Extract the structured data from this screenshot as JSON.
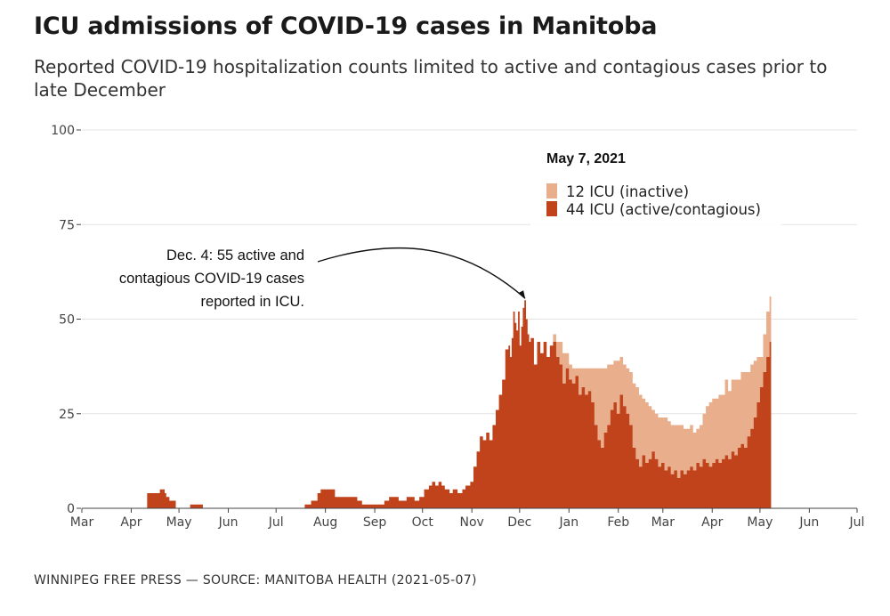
{
  "title": "ICU admissions of COVID-19 cases in Manitoba",
  "subtitle": "Reported COVID-19 hospitalization counts limited to active and contagious cases prior to late December",
  "footer": "WINNIPEG FREE PRESS — SOURCE: MANITOBA HEALTH (2021-05-07)",
  "colors": {
    "active": "#c0431b",
    "inactive": "#e9ae8c",
    "grid": "#e4e4e4",
    "axis": "#444444"
  },
  "chart_data": {
    "type": "area",
    "stacked": true,
    "x_start": "2020-03-01",
    "x_end": "2021-07-01",
    "ylim": [
      0,
      100
    ],
    "yticks": [
      0,
      25,
      50,
      75,
      100
    ],
    "xtick_labels": [
      "Mar",
      "Apr",
      "May",
      "Jun",
      "Jul",
      "Aug",
      "Sep",
      "Oct",
      "Nov",
      "Dec",
      "Jan",
      "Feb",
      "Mar",
      "Apr",
      "May",
      "Jun",
      "Jul"
    ],
    "xtick_dates": [
      "2020-03-01",
      "2020-04-01",
      "2020-05-01",
      "2020-06-01",
      "2020-07-01",
      "2020-08-01",
      "2020-09-01",
      "2020-10-01",
      "2020-11-01",
      "2020-12-01",
      "2021-01-01",
      "2021-02-01",
      "2021-03-01",
      "2021-04-01",
      "2021-05-01",
      "2021-06-01",
      "2021-07-01"
    ],
    "grid": true,
    "legend": {
      "position": "top-right",
      "title": "May 7, 2021",
      "items": [
        {
          "label": "12 ICU (inactive)",
          "color": "#e9ae8c"
        },
        {
          "label": "44 ICU (active/contagious)",
          "color": "#c0431b"
        }
      ]
    },
    "annotation": {
      "lines": [
        "Dec. 4: 55 active and",
        "contagious COVID-19 cases",
        "reported in ICU."
      ],
      "date": "2020-12-04",
      "value": 55
    },
    "series": [
      {
        "name": "ICU (active/contagious)",
        "color": "#c0431b",
        "points": [
          [
            "2020-03-01",
            0
          ],
          [
            "2020-04-10",
            0
          ],
          [
            "2020-04-11",
            4
          ],
          [
            "2020-04-18",
            4
          ],
          [
            "2020-04-19",
            5
          ],
          [
            "2020-04-21",
            5
          ],
          [
            "2020-04-22",
            4
          ],
          [
            "2020-04-23",
            3
          ],
          [
            "2020-04-25",
            2
          ],
          [
            "2020-04-28",
            2
          ],
          [
            "2020-04-29",
            0
          ],
          [
            "2020-05-07",
            0
          ],
          [
            "2020-05-08",
            1
          ],
          [
            "2020-05-15",
            1
          ],
          [
            "2020-05-16",
            0
          ],
          [
            "2020-07-18",
            0
          ],
          [
            "2020-07-19",
            1
          ],
          [
            "2020-07-22",
            1
          ],
          [
            "2020-07-23",
            2
          ],
          [
            "2020-07-26",
            2
          ],
          [
            "2020-07-27",
            4
          ],
          [
            "2020-07-29",
            5
          ],
          [
            "2020-08-06",
            5
          ],
          [
            "2020-08-07",
            3
          ],
          [
            "2020-08-20",
            3
          ],
          [
            "2020-08-21",
            2
          ],
          [
            "2020-08-24",
            1
          ],
          [
            "2020-09-06",
            1
          ],
          [
            "2020-09-07",
            2
          ],
          [
            "2020-09-10",
            3
          ],
          [
            "2020-09-14",
            3
          ],
          [
            "2020-09-16",
            2
          ],
          [
            "2020-09-20",
            2
          ],
          [
            "2020-09-21",
            3
          ],
          [
            "2020-09-25",
            3
          ],
          [
            "2020-09-26",
            2
          ],
          [
            "2020-09-29",
            3
          ],
          [
            "2020-10-01",
            3
          ],
          [
            "2020-10-02",
            5
          ],
          [
            "2020-10-05",
            6
          ],
          [
            "2020-10-07",
            7
          ],
          [
            "2020-10-09",
            6
          ],
          [
            "2020-10-11",
            7
          ],
          [
            "2020-10-13",
            6
          ],
          [
            "2020-10-15",
            5
          ],
          [
            "2020-10-18",
            4
          ],
          [
            "2020-10-20",
            5
          ],
          [
            "2020-10-23",
            4
          ],
          [
            "2020-10-26",
            5
          ],
          [
            "2020-10-28",
            6
          ],
          [
            "2020-10-31",
            7
          ],
          [
            "2020-11-02",
            11
          ],
          [
            "2020-11-04",
            15
          ],
          [
            "2020-11-06",
            19
          ],
          [
            "2020-11-08",
            18
          ],
          [
            "2020-11-10",
            20
          ],
          [
            "2020-11-12",
            18
          ],
          [
            "2020-11-14",
            22
          ],
          [
            "2020-11-16",
            26
          ],
          [
            "2020-11-18",
            30
          ],
          [
            "2020-11-20",
            34
          ],
          [
            "2020-11-22",
            42
          ],
          [
            "2020-11-24",
            43
          ],
          [
            "2020-11-25",
            40
          ],
          [
            "2020-11-26",
            45
          ],
          [
            "2020-11-27",
            52
          ],
          [
            "2020-11-28",
            49
          ],
          [
            "2020-11-29",
            47
          ],
          [
            "2020-11-30",
            52
          ],
          [
            "2020-12-01",
            43
          ],
          [
            "2020-12-02",
            48
          ],
          [
            "2020-12-03",
            53
          ],
          [
            "2020-12-04",
            55
          ],
          [
            "2020-12-05",
            50
          ],
          [
            "2020-12-06",
            46
          ],
          [
            "2020-12-07",
            44
          ],
          [
            "2020-12-08",
            45
          ],
          [
            "2020-12-10",
            38
          ],
          [
            "2020-12-12",
            44
          ],
          [
            "2020-12-14",
            41
          ],
          [
            "2020-12-16",
            44
          ],
          [
            "2020-12-18",
            40
          ],
          [
            "2020-12-20",
            43
          ],
          [
            "2020-12-22",
            44
          ],
          [
            "2020-12-24",
            40
          ],
          [
            "2020-12-26",
            38
          ],
          [
            "2020-12-28",
            33
          ],
          [
            "2020-12-30",
            37
          ],
          [
            "2021-01-01",
            34
          ],
          [
            "2021-01-03",
            33
          ],
          [
            "2021-01-05",
            35
          ],
          [
            "2021-01-07",
            30
          ],
          [
            "2021-01-09",
            32
          ],
          [
            "2021-01-11",
            30
          ],
          [
            "2021-01-13",
            31
          ],
          [
            "2021-01-15",
            28
          ],
          [
            "2021-01-17",
            22
          ],
          [
            "2021-01-19",
            18
          ],
          [
            "2021-01-21",
            16
          ],
          [
            "2021-01-23",
            20
          ],
          [
            "2021-01-25",
            22
          ],
          [
            "2021-01-27",
            26
          ],
          [
            "2021-01-29",
            28
          ],
          [
            "2021-01-31",
            25
          ],
          [
            "2021-02-02",
            30
          ],
          [
            "2021-02-04",
            27
          ],
          [
            "2021-02-06",
            25
          ],
          [
            "2021-02-08",
            22
          ],
          [
            "2021-02-10",
            16
          ],
          [
            "2021-02-12",
            13
          ],
          [
            "2021-02-14",
            11
          ],
          [
            "2021-02-16",
            14
          ],
          [
            "2021-02-18",
            12
          ],
          [
            "2021-02-20",
            13
          ],
          [
            "2021-02-22",
            15
          ],
          [
            "2021-02-24",
            13
          ],
          [
            "2021-02-26",
            11
          ],
          [
            "2021-02-28",
            12
          ],
          [
            "2021-03-02",
            10
          ],
          [
            "2021-03-04",
            11
          ],
          [
            "2021-03-06",
            9
          ],
          [
            "2021-03-08",
            10
          ],
          [
            "2021-03-10",
            8
          ],
          [
            "2021-03-12",
            10
          ],
          [
            "2021-03-14",
            9
          ],
          [
            "2021-03-16",
            10
          ],
          [
            "2021-03-18",
            11
          ],
          [
            "2021-03-20",
            10
          ],
          [
            "2021-03-22",
            12
          ],
          [
            "2021-03-24",
            11
          ],
          [
            "2021-03-26",
            13
          ],
          [
            "2021-03-28",
            12
          ],
          [
            "2021-03-30",
            11
          ],
          [
            "2021-04-01",
            12
          ],
          [
            "2021-04-03",
            13
          ],
          [
            "2021-04-05",
            12
          ],
          [
            "2021-04-07",
            13
          ],
          [
            "2021-04-09",
            14
          ],
          [
            "2021-04-11",
            13
          ],
          [
            "2021-04-13",
            15
          ],
          [
            "2021-04-15",
            14
          ],
          [
            "2021-04-17",
            16
          ],
          [
            "2021-04-19",
            17
          ],
          [
            "2021-04-21",
            16
          ],
          [
            "2021-04-23",
            19
          ],
          [
            "2021-04-25",
            21
          ],
          [
            "2021-04-27",
            24
          ],
          [
            "2021-04-29",
            28
          ],
          [
            "2021-05-01",
            32
          ],
          [
            "2021-05-03",
            36
          ],
          [
            "2021-05-05",
            40
          ],
          [
            "2021-05-07",
            44
          ]
        ]
      },
      {
        "name": "ICU (inactive)",
        "color": "#e9ae8c",
        "points": [
          [
            "2020-12-20",
            0
          ],
          [
            "2020-12-22",
            2
          ],
          [
            "2020-12-24",
            4
          ],
          [
            "2020-12-26",
            6
          ],
          [
            "2020-12-28",
            8
          ],
          [
            "2020-12-30",
            4
          ],
          [
            "2021-01-01",
            4
          ],
          [
            "2021-01-03",
            4
          ],
          [
            "2021-01-05",
            2
          ],
          [
            "2021-01-07",
            7
          ],
          [
            "2021-01-09",
            5
          ],
          [
            "2021-01-11",
            7
          ],
          [
            "2021-01-13",
            6
          ],
          [
            "2021-01-15",
            9
          ],
          [
            "2021-01-17",
            15
          ],
          [
            "2021-01-19",
            19
          ],
          [
            "2021-01-21",
            21
          ],
          [
            "2021-01-23",
            17
          ],
          [
            "2021-01-25",
            16
          ],
          [
            "2021-01-27",
            12
          ],
          [
            "2021-01-29",
            11
          ],
          [
            "2021-01-31",
            14
          ],
          [
            "2021-02-02",
            10
          ],
          [
            "2021-02-04",
            11
          ],
          [
            "2021-02-06",
            12
          ],
          [
            "2021-02-08",
            14
          ],
          [
            "2021-02-10",
            17
          ],
          [
            "2021-02-12",
            19
          ],
          [
            "2021-02-14",
            19
          ],
          [
            "2021-02-16",
            15
          ],
          [
            "2021-02-18",
            16
          ],
          [
            "2021-02-20",
            14
          ],
          [
            "2021-02-22",
            11
          ],
          [
            "2021-02-24",
            12
          ],
          [
            "2021-02-26",
            13
          ],
          [
            "2021-02-28",
            12
          ],
          [
            "2021-03-02",
            14
          ],
          [
            "2021-03-04",
            12
          ],
          [
            "2021-03-06",
            13
          ],
          [
            "2021-03-08",
            12
          ],
          [
            "2021-03-10",
            14
          ],
          [
            "2021-03-12",
            12
          ],
          [
            "2021-03-14",
            12
          ],
          [
            "2021-03-16",
            11
          ],
          [
            "2021-03-18",
            11
          ],
          [
            "2021-03-20",
            10
          ],
          [
            "2021-03-22",
            9
          ],
          [
            "2021-03-24",
            11
          ],
          [
            "2021-03-26",
            12
          ],
          [
            "2021-03-28",
            15
          ],
          [
            "2021-03-30",
            17
          ],
          [
            "2021-04-01",
            17
          ],
          [
            "2021-04-03",
            16
          ],
          [
            "2021-04-05",
            18
          ],
          [
            "2021-04-07",
            17
          ],
          [
            "2021-04-09",
            20
          ],
          [
            "2021-04-11",
            18
          ],
          [
            "2021-04-13",
            19
          ],
          [
            "2021-04-15",
            20
          ],
          [
            "2021-04-17",
            18
          ],
          [
            "2021-04-19",
            19
          ],
          [
            "2021-04-21",
            20
          ],
          [
            "2021-04-23",
            17
          ],
          [
            "2021-04-25",
            17
          ],
          [
            "2021-04-27",
            15
          ],
          [
            "2021-04-29",
            12
          ],
          [
            "2021-05-01",
            8
          ],
          [
            "2021-05-03",
            10
          ],
          [
            "2021-05-05",
            12
          ],
          [
            "2021-05-07",
            12
          ]
        ]
      }
    ]
  }
}
